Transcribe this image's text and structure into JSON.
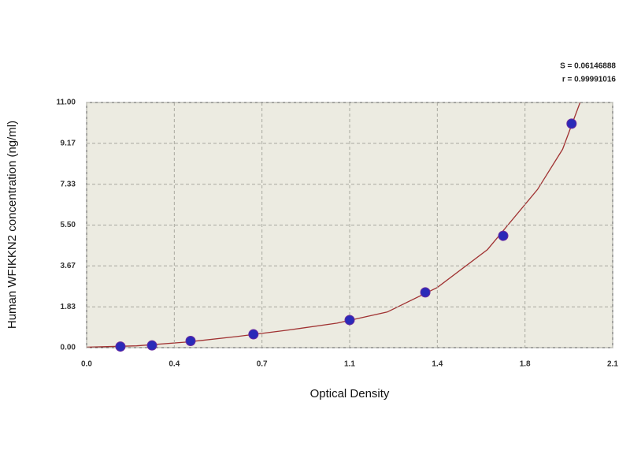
{
  "chart_data": {
    "type": "scatter",
    "x_label": "Optical Density",
    "y_label": "Human WFIKKN2 concentration (ng/ml)",
    "annotations": [
      "S = 0.06146888",
      "r = 0.99991016"
    ],
    "xlim": [
      0,
      2.1
    ],
    "ylim": [
      0,
      11
    ],
    "xticks": [
      {
        "value": 0,
        "label": "0.0"
      },
      {
        "value": 0.35,
        "label": "0.4"
      },
      0.7,
      {
        "value": 1.05,
        "label": "1.1"
      },
      1.4,
      {
        "value": 1.75,
        "label": "1.8"
      },
      2.1
    ],
    "yticks": [
      {
        "value": 0,
        "label": "0.00"
      },
      {
        "value": 1.83,
        "label": "1.83"
      },
      {
        "value": 3.67,
        "label": "3.67"
      },
      {
        "value": 5.5,
        "label": "5.50"
      },
      {
        "value": 7.33,
        "label": "7.33"
      },
      {
        "value": 9.17,
        "label": "9.17"
      },
      {
        "value": 11,
        "label": "11.00"
      }
    ],
    "grid": true,
    "series": [
      {
        "style": "markers",
        "color": "#2a2ab8",
        "x": [
          0.135,
          0.261,
          0.415,
          0.666,
          1.05,
          1.352,
          1.663,
          1.936
        ],
        "values": [
          0.05,
          0.1,
          0.3,
          0.6,
          1.24,
          2.48,
          5.02,
          10.05
        ]
      },
      {
        "style": "line",
        "color": "#a03232",
        "x": [
          0,
          0.2,
          0.4,
          0.6,
          0.8,
          1.0,
          1.2,
          1.4,
          1.6,
          1.8,
          1.9,
          1.97
        ],
        "values": [
          0.02,
          0.08,
          0.25,
          0.5,
          0.78,
          1.1,
          1.6,
          2.7,
          4.4,
          7.1,
          8.9,
          11
        ]
      }
    ]
  }
}
